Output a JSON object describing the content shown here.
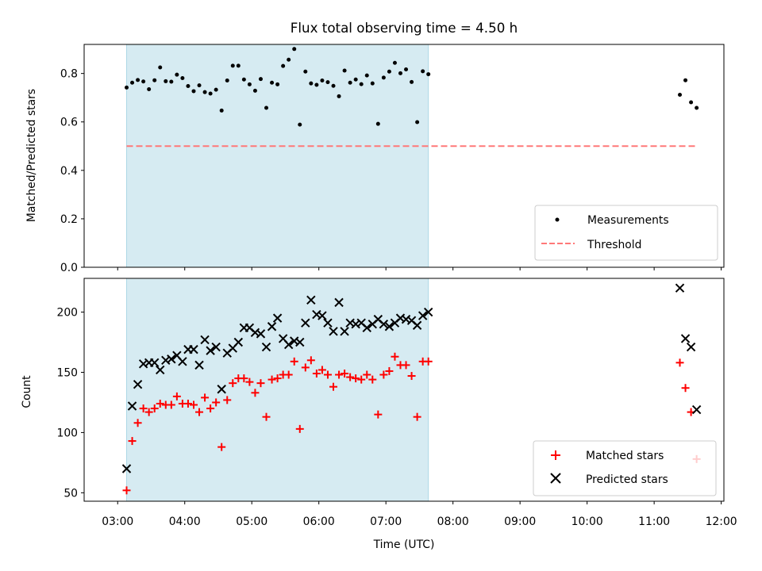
{
  "figure": {
    "title": "Flux total observing time = 4.50 h",
    "xlabel": "Time (UTC)",
    "x_ticks": [
      "03:00",
      "04:00",
      "05:00",
      "06:00",
      "07:00",
      "08:00",
      "09:00",
      "10:00",
      "11:00",
      "12:00"
    ],
    "shaded_span": {
      "start": "03:08",
      "end": "07:38",
      "color": "#add8e6"
    }
  },
  "chart_data": [
    {
      "type": "scatter",
      "name": "ratio-panel",
      "ylabel": "Matched/Predicted stars",
      "ylim": [
        0,
        0.92
      ],
      "y_ticks": [
        "0.0",
        "0.2",
        "0.4",
        "0.6",
        "0.8"
      ],
      "legend_position": "lower-right",
      "threshold": {
        "name": "Threshold",
        "value": 0.5,
        "x_start": "03:08",
        "x_end": "11:38",
        "color": "#ff7878"
      },
      "series": [
        {
          "name": "Measurements",
          "color": "#000000",
          "points": [
            [
              "03:08",
              0.742
            ],
            [
              "03:13",
              0.762
            ],
            [
              "03:18",
              0.773
            ],
            [
              "03:23",
              0.767
            ],
            [
              "03:28",
              0.735
            ],
            [
              "03:33",
              0.772
            ],
            [
              "03:38",
              0.825
            ],
            [
              "03:43",
              0.768
            ],
            [
              "03:48",
              0.766
            ],
            [
              "03:53",
              0.795
            ],
            [
              "03:58",
              0.781
            ],
            [
              "04:03",
              0.748
            ],
            [
              "04:08",
              0.727
            ],
            [
              "04:13",
              0.751
            ],
            [
              "04:18",
              0.723
            ],
            [
              "04:23",
              0.717
            ],
            [
              "04:28",
              0.733
            ],
            [
              "04:33",
              0.647
            ],
            [
              "04:38",
              0.771
            ],
            [
              "04:43",
              0.832
            ],
            [
              "04:48",
              0.832
            ],
            [
              "04:53",
              0.775
            ],
            [
              "04:58",
              0.755
            ],
            [
              "05:03",
              0.729
            ],
            [
              "05:08",
              0.777
            ],
            [
              "05:13",
              0.658
            ],
            [
              "05:18",
              0.762
            ],
            [
              "05:23",
              0.755
            ],
            [
              "05:28",
              0.831
            ],
            [
              "05:33",
              0.857
            ],
            [
              "05:38",
              0.901
            ],
            [
              "05:43",
              0.589
            ],
            [
              "05:48",
              0.808
            ],
            [
              "05:53",
              0.759
            ],
            [
              "05:58",
              0.753
            ],
            [
              "06:03",
              0.771
            ],
            [
              "06:08",
              0.764
            ],
            [
              "06:13",
              0.749
            ],
            [
              "06:18",
              0.706
            ],
            [
              "06:23",
              0.812
            ],
            [
              "06:28",
              0.762
            ],
            [
              "06:33",
              0.775
            ],
            [
              "06:38",
              0.756
            ],
            [
              "06:43",
              0.792
            ],
            [
              "06:48",
              0.759
            ],
            [
              "06:53",
              0.592
            ],
            [
              "06:58",
              0.783
            ],
            [
              "07:03",
              0.808
            ],
            [
              "07:08",
              0.844
            ],
            [
              "07:13",
              0.801
            ],
            [
              "07:18",
              0.817
            ],
            [
              "07:23",
              0.765
            ],
            [
              "07:28",
              0.599
            ],
            [
              "07:33",
              0.809
            ],
            [
              "07:38",
              0.797
            ],
            [
              "11:23",
              0.712
            ],
            [
              "11:28",
              0.772
            ],
            [
              "11:33",
              0.681
            ],
            [
              "11:38",
              0.658
            ]
          ]
        }
      ]
    },
    {
      "type": "scatter",
      "name": "count-panel",
      "ylabel": "Count",
      "ylim": [
        43,
        228
      ],
      "y_ticks": [
        "50",
        "100",
        "150",
        "200"
      ],
      "legend_position": "lower-right",
      "series": [
        {
          "name": "Matched stars",
          "marker": "plus",
          "color": "#ff0000",
          "points": [
            [
              "03:08",
              52
            ],
            [
              "03:13",
              93
            ],
            [
              "03:18",
              108
            ],
            [
              "03:23",
              120
            ],
            [
              "03:28",
              117
            ],
            [
              "03:33",
              120
            ],
            [
              "03:38",
              124
            ],
            [
              "03:43",
              123
            ],
            [
              "03:48",
              123
            ],
            [
              "03:53",
              130
            ],
            [
              "03:58",
              124
            ],
            [
              "04:03",
              124
            ],
            [
              "04:08",
              123
            ],
            [
              "04:13",
              117
            ],
            [
              "04:18",
              129
            ],
            [
              "04:23",
              120
            ],
            [
              "04:28",
              125
            ],
            [
              "04:33",
              88
            ],
            [
              "04:38",
              127
            ],
            [
              "04:43",
              141
            ],
            [
              "04:48",
              145
            ],
            [
              "04:53",
              145
            ],
            [
              "04:58",
              142
            ],
            [
              "05:03",
              133
            ],
            [
              "05:08",
              141
            ],
            [
              "05:13",
              113
            ],
            [
              "05:18",
              144
            ],
            [
              "05:23",
              145
            ],
            [
              "05:28",
              148
            ],
            [
              "05:33",
              148
            ],
            [
              "05:38",
              159
            ],
            [
              "05:43",
              103
            ],
            [
              "05:48",
              154
            ],
            [
              "05:53",
              160
            ],
            [
              "05:58",
              149
            ],
            [
              "06:03",
              152
            ],
            [
              "06:08",
              148
            ],
            [
              "06:13",
              138
            ],
            [
              "06:18",
              148
            ],
            [
              "06:23",
              149
            ],
            [
              "06:28",
              146
            ],
            [
              "06:33",
              145
            ],
            [
              "06:38",
              144
            ],
            [
              "06:43",
              148
            ],
            [
              "06:48",
              144
            ],
            [
              "06:53",
              115
            ],
            [
              "06:58",
              148
            ],
            [
              "07:03",
              151
            ],
            [
              "07:08",
              163
            ],
            [
              "07:13",
              156
            ],
            [
              "07:18",
              156
            ],
            [
              "07:23",
              147
            ],
            [
              "07:28",
              113
            ],
            [
              "07:33",
              159
            ],
            [
              "07:38",
              159
            ],
            [
              "11:23",
              158
            ],
            [
              "11:28",
              137
            ],
            [
              "11:33",
              117
            ],
            [
              "11:38",
              78
            ]
          ]
        },
        {
          "name": "Predicted stars",
          "marker": "x",
          "color": "#000000",
          "points": [
            [
              "03:08",
              70
            ],
            [
              "03:13",
              122
            ],
            [
              "03:18",
              140
            ],
            [
              "03:23",
              157
            ],
            [
              "03:28",
              158
            ],
            [
              "03:33",
              158
            ],
            [
              "03:38",
              152
            ],
            [
              "03:43",
              160
            ],
            [
              "03:48",
              161
            ],
            [
              "03:53",
              164
            ],
            [
              "03:58",
              159
            ],
            [
              "04:03",
              169
            ],
            [
              "04:08",
              169
            ],
            [
              "04:13",
              156
            ],
            [
              "04:18",
              177
            ],
            [
              "04:23",
              168
            ],
            [
              "04:28",
              171
            ],
            [
              "04:33",
              136
            ],
            [
              "04:38",
              166
            ],
            [
              "04:43",
              170
            ],
            [
              "04:48",
              175
            ],
            [
              "04:53",
              187
            ],
            [
              "04:58",
              187
            ],
            [
              "05:03",
              183
            ],
            [
              "05:08",
              182
            ],
            [
              "05:13",
              171
            ],
            [
              "05:18",
              188
            ],
            [
              "05:23",
              195
            ],
            [
              "05:28",
              178
            ],
            [
              "05:33",
              173
            ],
            [
              "05:38",
              176
            ],
            [
              "05:43",
              175
            ],
            [
              "05:48",
              191
            ],
            [
              "05:53",
              210
            ],
            [
              "05:58",
              198
            ],
            [
              "06:03",
              197
            ],
            [
              "06:08",
              191
            ],
            [
              "06:13",
              184
            ],
            [
              "06:18",
              208
            ],
            [
              "06:23",
              184
            ],
            [
              "06:28",
              191
            ],
            [
              "06:33",
              190
            ],
            [
              "06:38",
              191
            ],
            [
              "06:43",
              187
            ],
            [
              "06:48",
              190
            ],
            [
              "06:53",
              194
            ],
            [
              "06:58",
              190
            ],
            [
              "07:03",
              188
            ],
            [
              "07:08",
              191
            ],
            [
              "07:13",
              195
            ],
            [
              "07:18",
              194
            ],
            [
              "07:23",
              193
            ],
            [
              "07:28",
              189
            ],
            [
              "07:33",
              197
            ],
            [
              "07:38",
              200
            ],
            [
              "11:23",
              220
            ],
            [
              "11:28",
              178
            ],
            [
              "11:33",
              171
            ],
            [
              "11:38",
              119
            ]
          ]
        }
      ]
    }
  ]
}
